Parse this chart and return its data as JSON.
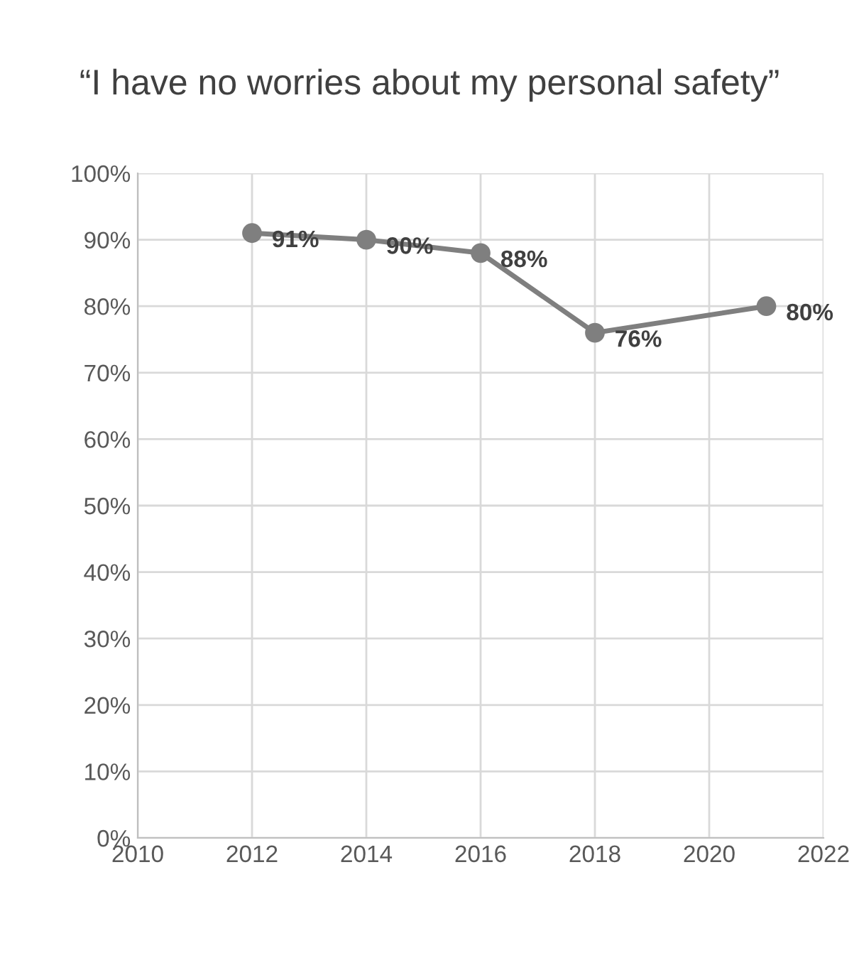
{
  "chart_data": {
    "type": "line",
    "title": "“I have no worries about my personal safety”",
    "x": [
      2012,
      2014,
      2016,
      2018,
      2021
    ],
    "series": [
      {
        "color": "#7f7f7f",
        "values": [
          91,
          90,
          88,
          76,
          80
        ],
        "value_labels": [
          "91%",
          "90%",
          "88%",
          "76%",
          "80%"
        ]
      }
    ],
    "xlim": [
      2010,
      2022
    ],
    "xticks": [
      2010,
      2012,
      2014,
      2016,
      2018,
      2020,
      2022
    ],
    "ylim": [
      0,
      100
    ],
    "yticks": [
      {
        "value": 0,
        "label": "0%"
      },
      {
        "value": 10,
        "label": "10%"
      },
      {
        "value": 20,
        "label": "20%"
      },
      {
        "value": 30,
        "label": "30%"
      },
      {
        "value": 40,
        "label": "40%"
      },
      {
        "value": 50,
        "label": "50%"
      },
      {
        "value": 60,
        "label": "60%"
      },
      {
        "value": 70,
        "label": "70%"
      },
      {
        "value": 80,
        "label": "80%"
      },
      {
        "value": 90,
        "label": "90%"
      },
      {
        "value": 100,
        "label": "100%"
      }
    ],
    "grid": true,
    "marker": "circle",
    "line_style": "solid"
  }
}
